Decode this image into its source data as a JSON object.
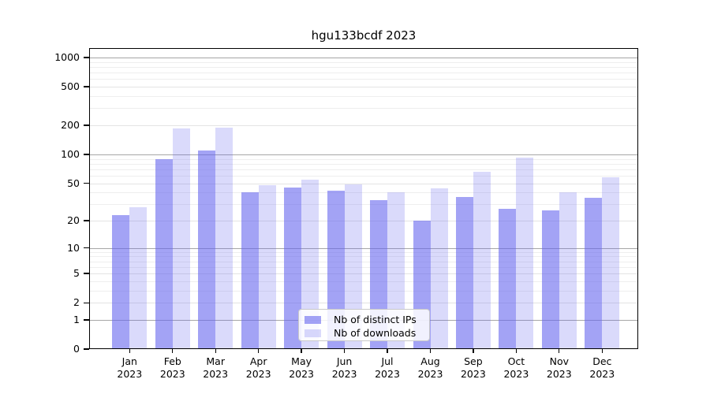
{
  "title": "hgu133bcdf 2023",
  "chart_data": {
    "type": "bar",
    "title": "hgu133bcdf 2023",
    "categories": [
      "Jan",
      "Feb",
      "Mar",
      "Apr",
      "May",
      "Jun",
      "Jul",
      "Aug",
      "Sep",
      "Oct",
      "Nov",
      "Dec"
    ],
    "year": "2023",
    "series": [
      {
        "name": "Nb of distinct IPs",
        "values": [
          23,
          90,
          110,
          40,
          45,
          42,
          33,
          20,
          36,
          27,
          26,
          35
        ],
        "color": "rgba(102,102,238,0.60)"
      },
      {
        "name": "Nb of downloads",
        "values": [
          28,
          185,
          190,
          48,
          55,
          49,
          40,
          44,
          66,
          92,
          40,
          58
        ],
        "color": "rgba(102,102,238,0.24)"
      }
    ],
    "yscale": "log1p",
    "ylim": [
      0,
      1253
    ],
    "yticks": [
      0,
      1,
      2,
      5,
      10,
      20,
      50,
      100,
      200,
      500,
      1000
    ],
    "yticks_minor": [
      3,
      4,
      6,
      7,
      8,
      9,
      30,
      40,
      60,
      70,
      80,
      90,
      300,
      400,
      600,
      700,
      800,
      900
    ],
    "grid": true,
    "legend_position": "lower center"
  },
  "legend": {
    "items": [
      {
        "label": "Nb of distinct IPs",
        "swatch": "rgba(102,102,238,0.60)"
      },
      {
        "label": "Nb of downloads",
        "swatch": "rgba(102,102,238,0.24)"
      }
    ]
  }
}
